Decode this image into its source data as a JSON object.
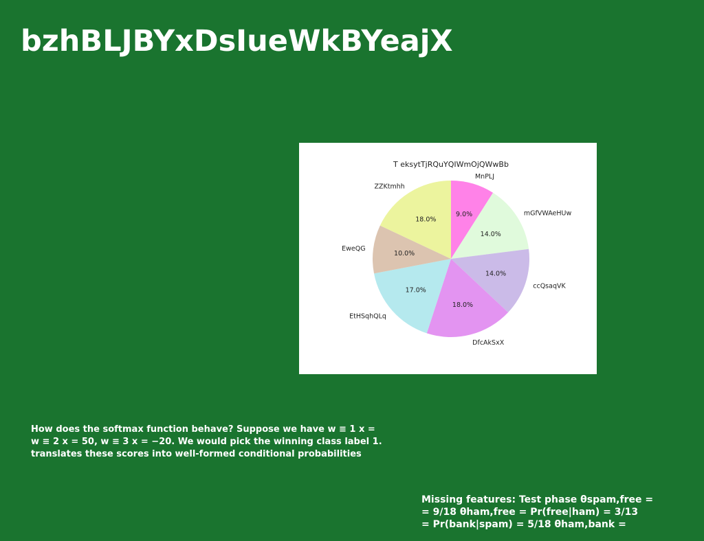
{
  "slide": {
    "title": "bzhBLJBYxDsIueWkBYeajX",
    "body_lines": [
      "How does the softmax function behave? Suppose we have w ≡ 1 x =",
      "w ≡ 2 x = 50, w ≡ 3 x = −20. We would pick the winning class label 1.",
      "translates these scores into well-formed conditional probabilities"
    ],
    "note_lines": [
      "Missing features: Test phase θspam,free =",
      "= 9/18 θham,free = Pr(free|ham) = 3/13",
      "= Pr(bank|spam) = 5/18 θham,bank ="
    ]
  },
  "colors": {
    "background": "#1a742f",
    "slice_colors": [
      "#ff82e8",
      "#e0fadc",
      "#cbbbe8",
      "#e394f1",
      "#b5e9ee",
      "#dcc4b0",
      "#ecf49e"
    ]
  },
  "chart_data": {
    "type": "pie",
    "title": "T eksytTjRQuYQIWmOjQWwBb",
    "labels": [
      "MnPLJ",
      "mGfVWAeHUw",
      "ccQsaqVK",
      "DfcAkSxX",
      "EtHSqhQLq",
      "EweQG",
      "ZZKtmhh"
    ],
    "values": [
      9.0,
      14.0,
      14.0,
      18.0,
      17.0,
      10.0,
      18.0
    ],
    "value_labels": [
      "9.0%",
      "14.0%",
      "14.0%",
      "18.0%",
      "17.0%",
      "10.0%",
      "18.0%"
    ],
    "start": "top",
    "direction": "clockwise"
  }
}
